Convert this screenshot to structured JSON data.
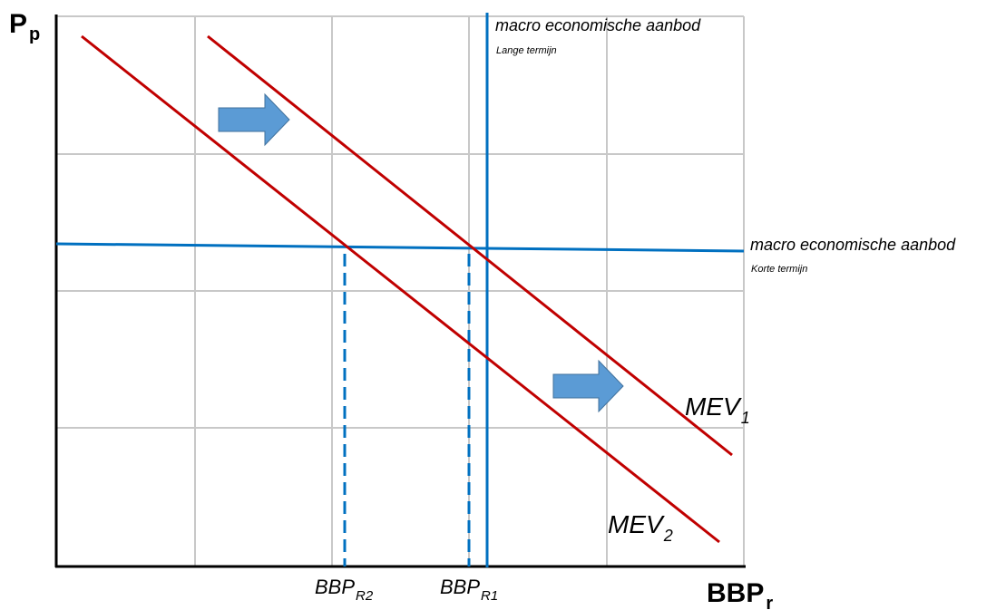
{
  "axes": {
    "y_label": "P",
    "y_label_sub": "p",
    "x_label": "BBP",
    "x_label_sub": "r"
  },
  "curves": {
    "las_label": "macro economische aanbod",
    "las_sublabel": "Lange termijn",
    "sas_label": "macro economische aanbod",
    "sas_sublabel": "Korte termijn",
    "mev1_label": "MEV",
    "mev1_sub": "1",
    "mev2_label": "MEV",
    "mev2_sub": "2"
  },
  "markers": {
    "bbp_r2_label": "BBP",
    "bbp_r2_sub": "R2",
    "bbp_r1_label": "BBP",
    "bbp_r1_sub": "R1"
  },
  "colors": {
    "grid": "#c8c8c8",
    "axis": "#000000",
    "demand": "#c00000",
    "supply": "#0070c0",
    "arrow": "#5b9bd5"
  }
}
